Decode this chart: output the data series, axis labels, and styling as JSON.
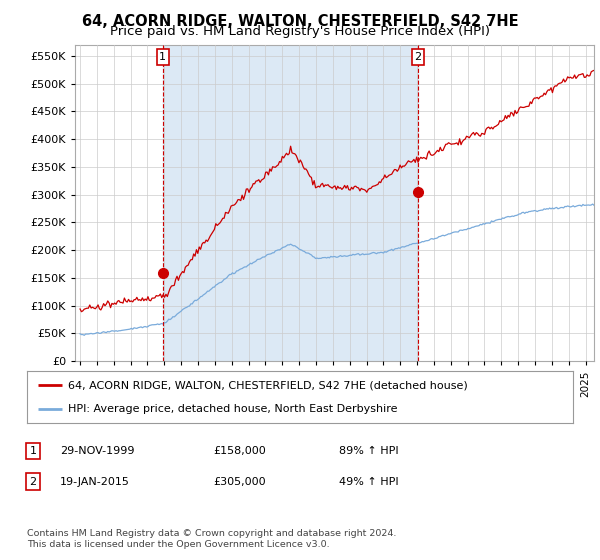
{
  "title": "64, ACORN RIDGE, WALTON, CHESTERFIELD, S42 7HE",
  "subtitle": "Price paid vs. HM Land Registry's House Price Index (HPI)",
  "ytick_values": [
    0,
    50000,
    100000,
    150000,
    200000,
    250000,
    300000,
    350000,
    400000,
    450000,
    500000,
    550000
  ],
  "ylim": [
    0,
    570000
  ],
  "xlim_start": 1994.7,
  "xlim_end": 2025.5,
  "hpi_color": "#7aabdb",
  "price_color": "#cc0000",
  "shade_color": "#dce9f5",
  "legend_label_price": "64, ACORN RIDGE, WALTON, CHESTERFIELD, S42 7HE (detached house)",
  "legend_label_hpi": "HPI: Average price, detached house, North East Derbyshire",
  "sale1_date": 1999.91,
  "sale1_price": 158000,
  "sale2_date": 2015.05,
  "sale2_price": 305000,
  "table_rows": [
    {
      "num": "1",
      "date": "29-NOV-1999",
      "price": "£158,000",
      "hpi": "89% ↑ HPI"
    },
    {
      "num": "2",
      "date": "19-JAN-2015",
      "price": "£305,000",
      "hpi": "49% ↑ HPI"
    }
  ],
  "footnote": "Contains HM Land Registry data © Crown copyright and database right 2024.\nThis data is licensed under the Open Government Licence v3.0.",
  "background_color": "#ffffff",
  "grid_color": "#cccccc",
  "title_fontsize": 10.5,
  "subtitle_fontsize": 9.5
}
